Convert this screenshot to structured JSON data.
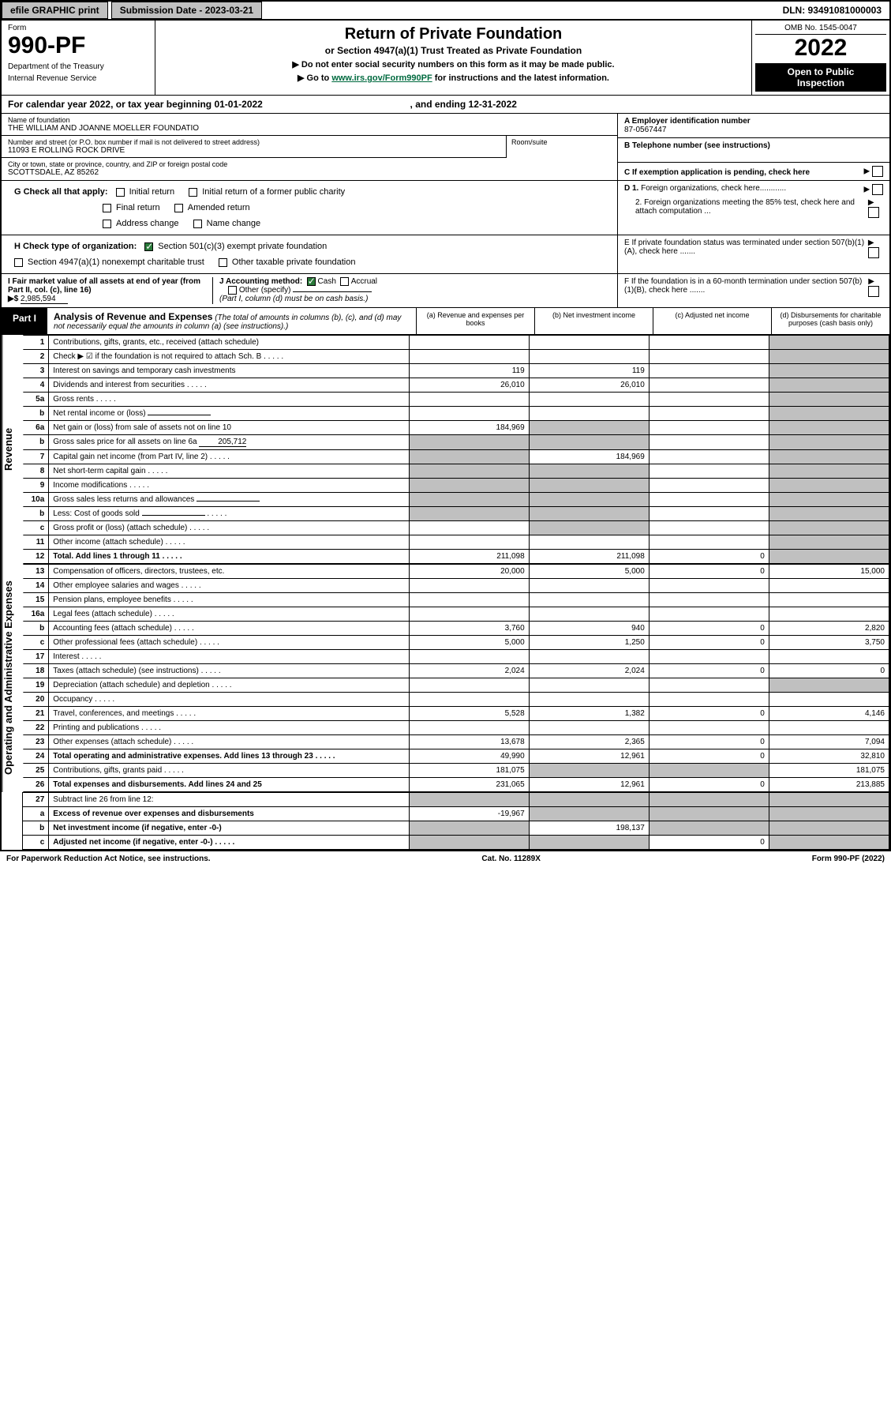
{
  "topbar": {
    "efile": "efile GRAPHIC print",
    "submission": "Submission Date - 2023-03-21",
    "dln": "DLN: 93491081000003"
  },
  "header": {
    "form_label": "Form",
    "form_num": "990-PF",
    "dept1": "Department of the Treasury",
    "dept2": "Internal Revenue Service",
    "title": "Return of Private Foundation",
    "sub": "or Section 4947(a)(1) Trust Treated as Private Foundation",
    "note1": "▶ Do not enter social security numbers on this form as it may be made public.",
    "note2_pre": "▶ Go to ",
    "note2_link": "www.irs.gov/Form990PF",
    "note2_post": " for instructions and the latest information.",
    "omb": "OMB No. 1545-0047",
    "year": "2022",
    "open1": "Open to Public",
    "open2": "Inspection"
  },
  "calendar": {
    "prefix": "For calendar year 2022, or tax year beginning ",
    "begin": "01-01-2022",
    "mid": ", and ending ",
    "end": "12-31-2022"
  },
  "foundation": {
    "name_label": "Name of foundation",
    "name": "THE WILLIAM AND JOANNE MOELLER FOUNDATIO",
    "addr_label": "Number and street (or P.O. box number if mail is not delivered to street address)",
    "addr": "11093 E ROLLING ROCK DRIVE",
    "room_label": "Room/suite",
    "city_label": "City or town, state or province, country, and ZIP or foreign postal code",
    "city": "SCOTTSDALE, AZ  85262"
  },
  "right_info": {
    "a_label": "A Employer identification number",
    "a_val": "87-0567447",
    "b_label": "B Telephone number (see instructions)",
    "c_label": "C If exemption application is pending, check here",
    "d1": "D 1. Foreign organizations, check here............",
    "d2": "2. Foreign organizations meeting the 85% test, check here and attach computation ...",
    "e_label": "E  If private foundation status was terminated under section 507(b)(1)(A), check here .......",
    "f_label": "F  If the foundation is in a 60-month termination under section 507(b)(1)(B), check here ......."
  },
  "g": {
    "label": "G Check all that apply:",
    "opts": [
      "Initial return",
      "Initial return of a former public charity",
      "Final return",
      "Amended return",
      "Address change",
      "Name change"
    ]
  },
  "h": {
    "label": "H Check type of organization:",
    "opt1": "Section 501(c)(3) exempt private foundation",
    "opt2": "Section 4947(a)(1) nonexempt charitable trust",
    "opt3": "Other taxable private foundation"
  },
  "i": {
    "label": "I Fair market value of all assets at end of year (from Part II, col. (c), line 16)",
    "val": "2,985,594"
  },
  "j": {
    "label": "J Accounting method:",
    "cash": "Cash",
    "accrual": "Accrual",
    "other": "Other (specify)",
    "note": "(Part I, column (d) must be on cash basis.)"
  },
  "part1": {
    "tag": "Part I",
    "title": "Analysis of Revenue and Expenses",
    "desc": " (The total of amounts in columns (b), (c), and (d) may not necessarily equal the amounts in column (a) (see instructions).)",
    "col_a": "(a) Revenue and expenses per books",
    "col_b": "(b) Net investment income",
    "col_c": "(c) Adjusted net income",
    "col_d": "(d) Disbursements for charitable purposes (cash basis only)"
  },
  "sidelabels": {
    "rev": "Revenue",
    "exp": "Operating and Administrative Expenses"
  },
  "rows": [
    {
      "n": "1",
      "d": "Contributions, gifts, grants, etc., received (attach schedule)",
      "a": "",
      "b": "",
      "c": "",
      "dd": "",
      "grey_c": false,
      "grey_d": false
    },
    {
      "n": "2",
      "d": "Check ▶ ☑ if the foundation is not required to attach Sch. B",
      "a": "",
      "b": "",
      "c": "",
      "dd": "",
      "dots": true
    },
    {
      "n": "3",
      "d": "Interest on savings and temporary cash investments",
      "a": "119",
      "b": "119",
      "c": "",
      "dd": ""
    },
    {
      "n": "4",
      "d": "Dividends and interest from securities",
      "a": "26,010",
      "b": "26,010",
      "c": "",
      "dd": "",
      "dots": true
    },
    {
      "n": "5a",
      "d": "Gross rents",
      "a": "",
      "b": "",
      "c": "",
      "dd": "",
      "dots": true
    },
    {
      "n": "b",
      "d": "Net rental income or (loss)",
      "a": "",
      "b": "",
      "c": "",
      "dd": "",
      "inline_box": true
    },
    {
      "n": "6a",
      "d": "Net gain or (loss) from sale of assets not on line 10",
      "a": "184,969",
      "b": "",
      "c": "",
      "dd": "",
      "grey_b": true
    },
    {
      "n": "b",
      "d": "Gross sales price for all assets on line 6a",
      "a": "",
      "b": "",
      "c": "",
      "dd": "",
      "inline_val": "205,712",
      "grey_a": true,
      "grey_b": true
    },
    {
      "n": "7",
      "d": "Capital gain net income (from Part IV, line 2)",
      "a": "",
      "b": "184,969",
      "c": "",
      "dd": "",
      "grey_a": true,
      "dots": true
    },
    {
      "n": "8",
      "d": "Net short-term capital gain",
      "a": "",
      "b": "",
      "c": "",
      "dd": "",
      "grey_a": true,
      "grey_b": true,
      "dots": true
    },
    {
      "n": "9",
      "d": "Income modifications",
      "a": "",
      "b": "",
      "c": "",
      "dd": "",
      "grey_a": true,
      "grey_b": true,
      "dots": true
    },
    {
      "n": "10a",
      "d": "Gross sales less returns and allowances",
      "a": "",
      "b": "",
      "c": "",
      "dd": "",
      "inline_box": true,
      "grey_a": true,
      "grey_b": true
    },
    {
      "n": "b",
      "d": "Less: Cost of goods sold",
      "a": "",
      "b": "",
      "c": "",
      "dd": "",
      "inline_box": true,
      "grey_a": true,
      "grey_b": true,
      "dots": true
    },
    {
      "n": "c",
      "d": "Gross profit or (loss) (attach schedule)",
      "a": "",
      "b": "",
      "c": "",
      "dd": "",
      "grey_b": true,
      "dots": true
    },
    {
      "n": "11",
      "d": "Other income (attach schedule)",
      "a": "",
      "b": "",
      "c": "",
      "dd": "",
      "dots": true
    },
    {
      "n": "12",
      "d": "Total. Add lines 1 through 11",
      "a": "211,098",
      "b": "211,098",
      "c": "0",
      "dd": "",
      "bold": true,
      "dots": true,
      "grey_d": true
    }
  ],
  "exp_rows": [
    {
      "n": "13",
      "d": "Compensation of officers, directors, trustees, etc.",
      "a": "20,000",
      "b": "5,000",
      "c": "0",
      "dd": "15,000"
    },
    {
      "n": "14",
      "d": "Other employee salaries and wages",
      "a": "",
      "b": "",
      "c": "",
      "dd": "",
      "dots": true
    },
    {
      "n": "15",
      "d": "Pension plans, employee benefits",
      "a": "",
      "b": "",
      "c": "",
      "dd": "",
      "dots": true
    },
    {
      "n": "16a",
      "d": "Legal fees (attach schedule)",
      "a": "",
      "b": "",
      "c": "",
      "dd": "",
      "dots": true
    },
    {
      "n": "b",
      "d": "Accounting fees (attach schedule)",
      "a": "3,760",
      "b": "940",
      "c": "0",
      "dd": "2,820",
      "dots": true
    },
    {
      "n": "c",
      "d": "Other professional fees (attach schedule)",
      "a": "5,000",
      "b": "1,250",
      "c": "0",
      "dd": "3,750",
      "dots": true
    },
    {
      "n": "17",
      "d": "Interest",
      "a": "",
      "b": "",
      "c": "",
      "dd": "",
      "dots": true
    },
    {
      "n": "18",
      "d": "Taxes (attach schedule) (see instructions)",
      "a": "2,024",
      "b": "2,024",
      "c": "0",
      "dd": "0",
      "dots": true
    },
    {
      "n": "19",
      "d": "Depreciation (attach schedule) and depletion",
      "a": "",
      "b": "",
      "c": "",
      "dd": "",
      "grey_d": true,
      "dots": true
    },
    {
      "n": "20",
      "d": "Occupancy",
      "a": "",
      "b": "",
      "c": "",
      "dd": "",
      "dots": true
    },
    {
      "n": "21",
      "d": "Travel, conferences, and meetings",
      "a": "5,528",
      "b": "1,382",
      "c": "0",
      "dd": "4,146",
      "dots": true
    },
    {
      "n": "22",
      "d": "Printing and publications",
      "a": "",
      "b": "",
      "c": "",
      "dd": "",
      "dots": true
    },
    {
      "n": "23",
      "d": "Other expenses (attach schedule)",
      "a": "13,678",
      "b": "2,365",
      "c": "0",
      "dd": "7,094",
      "dots": true
    },
    {
      "n": "24",
      "d": "Total operating and administrative expenses. Add lines 13 through 23",
      "a": "49,990",
      "b": "12,961",
      "c": "0",
      "dd": "32,810",
      "bold": true,
      "dots": true
    },
    {
      "n": "25",
      "d": "Contributions, gifts, grants paid",
      "a": "181,075",
      "b": "",
      "c": "",
      "dd": "181,075",
      "grey_b": true,
      "grey_c": true,
      "dots": true
    },
    {
      "n": "26",
      "d": "Total expenses and disbursements. Add lines 24 and 25",
      "a": "231,065",
      "b": "12,961",
      "c": "0",
      "dd": "213,885",
      "bold": true
    }
  ],
  "final_rows": [
    {
      "n": "27",
      "d": "Subtract line 26 from line 12:",
      "a": "",
      "b": "",
      "c": "",
      "dd": "",
      "grey_a": true,
      "grey_b": true,
      "grey_c": true,
      "grey_d": true
    },
    {
      "n": "a",
      "d": "Excess of revenue over expenses and disbursements",
      "a": "-19,967",
      "b": "",
      "c": "",
      "dd": "",
      "bold": true,
      "grey_b": true,
      "grey_c": true,
      "grey_d": true
    },
    {
      "n": "b",
      "d": "Net investment income (if negative, enter -0-)",
      "a": "",
      "b": "198,137",
      "c": "",
      "dd": "",
      "bold": true,
      "grey_a": true,
      "grey_c": true,
      "grey_d": true
    },
    {
      "n": "c",
      "d": "Adjusted net income (if negative, enter -0-)",
      "a": "",
      "b": "",
      "c": "0",
      "dd": "",
      "bold": true,
      "grey_a": true,
      "grey_b": true,
      "grey_d": true,
      "dots": true
    }
  ],
  "footer": {
    "left": "For Paperwork Reduction Act Notice, see instructions.",
    "mid": "Cat. No. 11289X",
    "right": "Form 990-PF (2022)"
  },
  "colors": {
    "grey": "#c0c0c0",
    "black": "#000000",
    "green_link": "#006a3f",
    "check_green": "#2a7a3a"
  }
}
